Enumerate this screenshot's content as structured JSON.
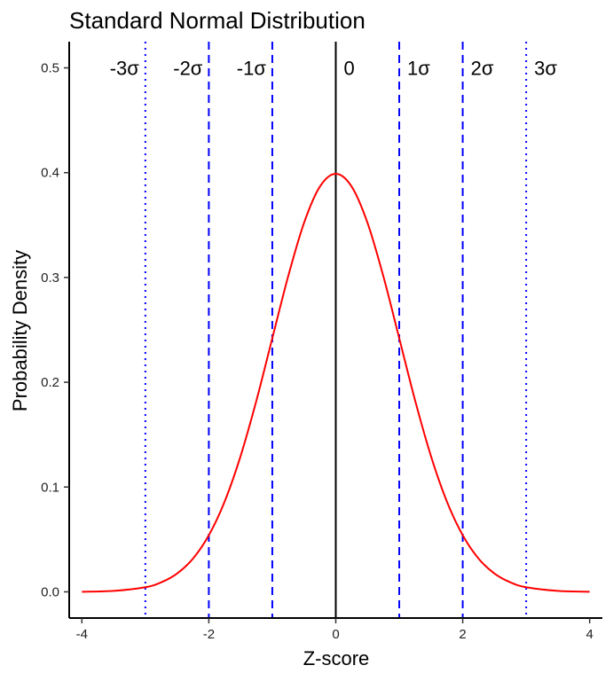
{
  "chart_data": {
    "type": "line",
    "title": "Standard Normal Distribution",
    "xlabel": "Z-score",
    "ylabel": "Probability Density",
    "xlim": [
      -4.2,
      4.2
    ],
    "ylim": [
      -0.025,
      0.525
    ],
    "x_ticks": [
      -4,
      -2,
      0,
      2,
      4
    ],
    "y_ticks": [
      0.0,
      0.1,
      0.2,
      0.3,
      0.4,
      0.5
    ],
    "x_tick_labels": [
      "-4",
      "-2",
      "0",
      "2",
      "4"
    ],
    "y_tick_labels": [
      "0.0",
      "0.1",
      "0.2",
      "0.3",
      "0.4",
      "0.5"
    ],
    "grid": false,
    "series": [
      {
        "color": "#ff0000",
        "x": [
          -4,
          -3.5,
          -3,
          -2.75,
          -2.5,
          -2.25,
          -2,
          -1.75,
          -1.5,
          -1.25,
          -1,
          -0.75,
          -0.5,
          -0.25,
          0,
          0.25,
          0.5,
          0.75,
          1,
          1.25,
          1.5,
          1.75,
          2,
          2.25,
          2.5,
          2.75,
          3,
          3.5,
          4
        ],
        "values": [
          0.0001,
          0.0009,
          0.0044,
          0.0091,
          0.0175,
          0.0317,
          0.054,
          0.0863,
          0.1295,
          0.1826,
          0.242,
          0.3011,
          0.3521,
          0.3867,
          0.3989,
          0.3867,
          0.3521,
          0.3011,
          0.242,
          0.1826,
          0.1295,
          0.0863,
          0.054,
          0.0317,
          0.0175,
          0.0091,
          0.0044,
          0.0009,
          0.0001
        ]
      }
    ],
    "reference_lines": [
      {
        "x": -3,
        "label": "-3σ",
        "style": "dotted",
        "color": "#0000ff"
      },
      {
        "x": -2,
        "label": "-2σ",
        "style": "dashed",
        "color": "#0000ff"
      },
      {
        "x": -1,
        "label": "-1σ",
        "style": "dashed",
        "color": "#0000ff"
      },
      {
        "x": 0,
        "label": "0",
        "style": "solid",
        "color": "#000000"
      },
      {
        "x": 1,
        "label": "1σ",
        "style": "dashed",
        "color": "#0000ff"
      },
      {
        "x": 2,
        "label": "2σ",
        "style": "dashed",
        "color": "#0000ff"
      },
      {
        "x": 3,
        "label": "3σ",
        "style": "dotted",
        "color": "#0000ff"
      }
    ],
    "reference_label_y": 0.5
  }
}
